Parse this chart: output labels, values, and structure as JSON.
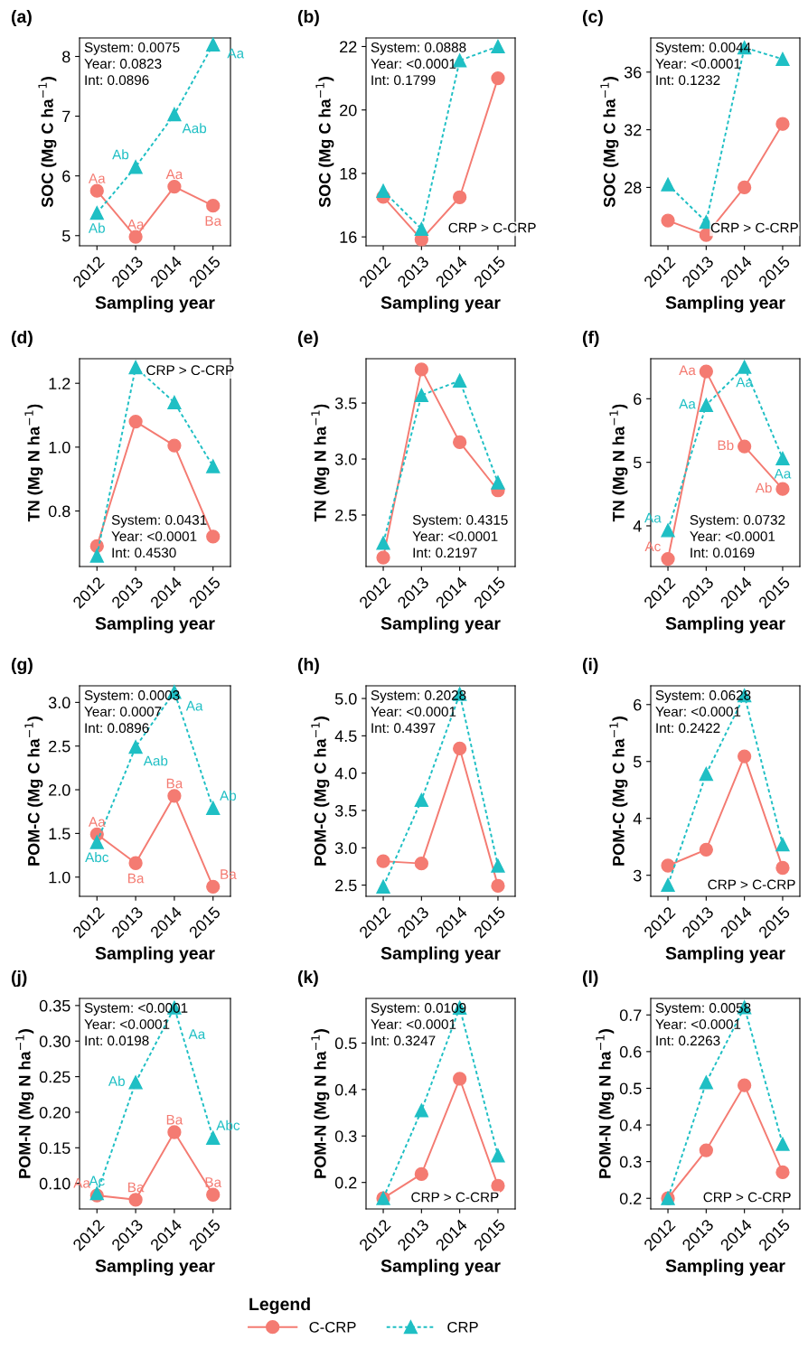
{
  "chart_data": [
    {
      "type": "line",
      "title": "(a)",
      "xlabel": "Sampling year",
      "ylabel": "SOC (Mg C ha$^{−1}$)",
      "categories": [
        "2012",
        "2013",
        "2014",
        "2015"
      ],
      "ylim": [
        4.83,
        8.31
      ],
      "yticks": [
        5,
        6,
        7,
        8
      ],
      "grid": false,
      "legend": false,
      "series": [
        {
          "color": "#f47b72",
          "marker": "circle",
          "line_style": "solid",
          "values": [
            5.75,
            4.98,
            5.82,
            5.5
          ],
          "value_labels": [
            "Aa",
            "Aa",
            "Aa",
            "Ba"
          ]
        },
        {
          "color": "#1fbfc4",
          "marker": "triangle",
          "line_style": "dotted",
          "values": [
            5.38,
            6.15,
            7.03,
            8.2
          ],
          "value_labels": [
            "Ab",
            "Ab",
            "Aab",
            "Aa"
          ]
        }
      ],
      "annotations": [
        "System: 0.0075\nYear: 0.0823\nInt: 0.0896"
      ]
    },
    {
      "type": "line",
      "title": "(b)",
      "xlabel": "Sampling year",
      "ylabel": "SOC (Mg C ha$^{−1}$)",
      "categories": [
        "2012",
        "2013",
        "2014",
        "2015"
      ],
      "ylim": [
        15.72,
        22.27
      ],
      "yticks": [
        16,
        18,
        20,
        22
      ],
      "grid": false,
      "legend": false,
      "series": [
        {
          "color": "#f47b72",
          "marker": "circle",
          "line_style": "solid",
          "values": [
            17.26,
            15.92,
            17.25,
            21.0
          ]
        },
        {
          "color": "#1fbfc4",
          "marker": "triangle",
          "line_style": "dotted",
          "values": [
            17.45,
            16.25,
            21.56,
            22.0
          ]
        }
      ],
      "annotations": [
        "System: 0.0888\nYear: <0.0001\nInt: 0.1799",
        "CRP > C-CRP"
      ]
    },
    {
      "type": "line",
      "title": "(c)",
      "xlabel": "Sampling year",
      "ylabel": "SOC (Mg C ha$^{−1}$)",
      "categories": [
        "2012",
        "2013",
        "2014",
        "2015"
      ],
      "ylim": [
        23.95,
        38.37
      ],
      "yticks": [
        28,
        32,
        36
      ],
      "grid": false,
      "legend": false,
      "series": [
        {
          "color": "#f47b72",
          "marker": "circle",
          "line_style": "solid",
          "values": [
            25.7,
            24.7,
            28.0,
            32.4
          ]
        },
        {
          "color": "#1fbfc4",
          "marker": "triangle",
          "line_style": "dotted",
          "values": [
            28.2,
            25.6,
            37.7,
            36.9
          ]
        }
      ],
      "annotations": [
        "System: 0.0044\nYear: <0.0001\nInt: 0.1232",
        "CRP > C-CRP"
      ]
    },
    {
      "type": "line",
      "title": "(d)",
      "xlabel": "Sampling year",
      "ylabel": "TN (Mg N ha$^{−1}$)",
      "categories": [
        "2012",
        "2013",
        "2014",
        "2015"
      ],
      "ylim": [
        0.626,
        1.277
      ],
      "yticks": [
        0.8,
        {
          "value": 1,
          "label": "1.0"
        },
        1.2
      ],
      "grid": false,
      "legend": false,
      "series": [
        {
          "color": "#f47b72",
          "marker": "circle",
          "line_style": "solid",
          "values": [
            0.69,
            1.08,
            1.005,
            0.72
          ]
        },
        {
          "color": "#1fbfc4",
          "marker": "triangle",
          "line_style": "dotted",
          "values": [
            0.66,
            1.25,
            1.14,
            0.94
          ]
        }
      ],
      "annotations": [
        "System: 0.0431\nYear: <0.0001\nInt: 0.4530",
        "CRP > C-CRP"
      ]
    },
    {
      "type": "line",
      "title": "(e)",
      "xlabel": "Sampling year",
      "ylabel": "TN (Mg N ha$^{−1}$)",
      "categories": [
        "2012",
        "2013",
        "2014",
        "2015"
      ],
      "ylim": [
        2.04,
        3.896
      ],
      "yticks": [
        2.5,
        {
          "value": 3,
          "label": "3.0"
        },
        3.5
      ],
      "grid": false,
      "legend": false,
      "series": [
        {
          "color": "#f47b72",
          "marker": "circle",
          "line_style": "solid",
          "values": [
            2.12,
            3.8,
            3.15,
            2.72
          ]
        },
        {
          "color": "#1fbfc4",
          "marker": "triangle",
          "line_style": "dotted",
          "values": [
            2.25,
            3.57,
            3.7,
            2.79
          ]
        }
      ],
      "annotations": [
        "System: 0.4315\nYear: <0.0001\nInt: 0.2197"
      ]
    },
    {
      "type": "line",
      "title": "(f)",
      "xlabel": "Sampling year",
      "ylabel": "TN (Mg N ha$^{−1}$)",
      "categories": [
        "2012",
        "2013",
        "2014",
        "2015"
      ],
      "ylim": [
        3.36,
        6.63
      ],
      "yticks": [
        4,
        5,
        6
      ],
      "grid": false,
      "legend": false,
      "series": [
        {
          "color": "#f47b72",
          "marker": "circle",
          "line_style": "solid",
          "values": [
            3.48,
            6.43,
            5.25,
            4.58
          ],
          "value_labels": [
            "Ac",
            "Aa",
            "Bb",
            "Ab"
          ]
        },
        {
          "color": "#1fbfc4",
          "marker": "triangle",
          "line_style": "dotted",
          "values": [
            3.93,
            5.9,
            6.5,
            5.06
          ],
          "value_labels": [
            "Aa",
            "Aa",
            "Aa",
            "Aa"
          ]
        }
      ],
      "annotations": [
        "System: 0.0732\nYear: <0.0001\nInt: 0.0169"
      ]
    },
    {
      "type": "line",
      "title": "(g)",
      "xlabel": "Sampling year",
      "ylabel": "POM-C (Mg C ha$^{−1}$)",
      "categories": [
        "2012",
        "2013",
        "2014",
        "2015"
      ],
      "ylim": [
        0.78,
        3.19
      ],
      "yticks": [
        {
          "value": 1,
          "label": "1.0"
        },
        1.5,
        {
          "value": 2,
          "label": "2.0"
        },
        2.5,
        {
          "value": 3,
          "label": "3.0"
        }
      ],
      "grid": false,
      "legend": false,
      "series": [
        {
          "color": "#f47b72",
          "marker": "circle",
          "line_style": "solid",
          "values": [
            1.49,
            1.16,
            1.93,
            0.89
          ],
          "value_labels": [
            "Aa",
            "Ba",
            "Ba",
            "Ba"
          ]
        },
        {
          "color": "#1fbfc4",
          "marker": "triangle",
          "line_style": "dotted",
          "values": [
            1.4,
            2.49,
            3.12,
            1.79
          ],
          "value_labels": [
            "Abc",
            "Aab",
            "Aa",
            "Ab"
          ]
        }
      ],
      "annotations": [
        "System: 0.0003\nYear: 0.0007\nInt: 0.0896"
      ]
    },
    {
      "type": "line",
      "title": "(h)",
      "xlabel": "Sampling year",
      "ylabel": "POM-C (Mg C ha$^{−1}$)",
      "categories": [
        "2012",
        "2013",
        "2014",
        "2015"
      ],
      "ylim": [
        2.35,
        5.17
      ],
      "yticks": [
        2.5,
        {
          "value": 3,
          "label": "3.0"
        },
        3.5,
        {
          "value": 4,
          "label": "4.0"
        },
        4.5,
        {
          "value": 5,
          "label": "5.0"
        }
      ],
      "grid": false,
      "legend": false,
      "series": [
        {
          "color": "#f47b72",
          "marker": "circle",
          "line_style": "solid",
          "values": [
            2.82,
            2.79,
            4.33,
            2.49
          ]
        },
        {
          "color": "#1fbfc4",
          "marker": "triangle",
          "line_style": "dotted",
          "values": [
            2.48,
            3.64,
            5.06,
            2.76
          ]
        }
      ],
      "annotations": [
        "System: 0.2028\nYear: <0.0001\nInt: 0.4397"
      ]
    },
    {
      "type": "line",
      "title": "(i)",
      "xlabel": "Sampling year",
      "ylabel": "POM-C (Mg C ha$^{−1}$)",
      "categories": [
        "2012",
        "2013",
        "2014",
        "2015"
      ],
      "ylim": [
        2.63,
        6.33
      ],
      "yticks": [
        3,
        4,
        5,
        6
      ],
      "grid": false,
      "legend": false,
      "series": [
        {
          "color": "#f47b72",
          "marker": "circle",
          "line_style": "solid",
          "values": [
            3.17,
            3.45,
            5.09,
            3.13
          ]
        },
        {
          "color": "#1fbfc4",
          "marker": "triangle",
          "line_style": "dotted",
          "values": [
            2.83,
            4.78,
            6.16,
            3.54
          ]
        }
      ],
      "annotations": [
        "System: 0.0628\nYear: <0.0001\nInt: 0.2422",
        "CRP > C-CRP"
      ]
    },
    {
      "type": "line",
      "title": "(j)",
      "xlabel": "Sampling year",
      "ylabel": "POM-N (Mg N ha$^{−1}$)",
      "categories": [
        "2012",
        "2013",
        "2014",
        "2015"
      ],
      "ylim": [
        0.064,
        0.36
      ],
      "yticks": [
        {
          "value": 0.1,
          "label": "0.10"
        },
        0.15,
        {
          "value": 0.2,
          "label": "0.20"
        },
        0.25,
        {
          "value": 0.3,
          "label": "0.30"
        },
        0.35
      ],
      "grid": false,
      "legend": false,
      "series": [
        {
          "color": "#f47b72",
          "marker": "circle",
          "line_style": "solid",
          "values": [
            0.083,
            0.077,
            0.172,
            0.084
          ],
          "value_labels": [
            "Aa",
            "Ba",
            "Ba",
            "Ba"
          ]
        },
        {
          "color": "#1fbfc4",
          "marker": "triangle",
          "line_style": "dotted",
          "values": [
            0.086,
            0.242,
            0.347,
            0.164
          ],
          "value_labels": [
            "Ac",
            "Ab",
            "Aa",
            "Abc"
          ]
        }
      ],
      "annotations": [
        "System: <0.0001\nYear: <0.0001\nInt: 0.0198"
      ]
    },
    {
      "type": "line",
      "title": "(k)",
      "xlabel": "Sampling year",
      "ylabel": "POM-N (Mg N ha$^{−1}$)",
      "categories": [
        "2012",
        "2013",
        "2014",
        "2015"
      ],
      "ylim": [
        0.143,
        0.596
      ],
      "yticks": [
        0.2,
        0.3,
        0.4,
        0.5
      ],
      "grid": false,
      "legend": "bottom",
      "legend_title": "Legend",
      "series": [
        {
          "name": "C-CRP",
          "color": "#f47b72",
          "marker": "circle",
          "line_style": "solid",
          "values": [
            0.166,
            0.218,
            0.423,
            0.193
          ]
        },
        {
          "name": "CRP",
          "color": "#1fbfc4",
          "marker": "triangle",
          "line_style": "dotted",
          "values": [
            0.166,
            0.355,
            0.576,
            0.258
          ]
        }
      ],
      "annotations": [
        "System: 0.0109\nYear: <0.0001\nInt: 0.3247",
        "CRP > C-CRP"
      ]
    },
    {
      "type": "line",
      "title": "(l)",
      "xlabel": "Sampling year",
      "ylabel": "POM-N (Mg N ha$^{−1}$)",
      "categories": [
        "2012",
        "2013",
        "2014",
        "2015"
      ],
      "ylim": [
        0.171,
        0.745
      ],
      "yticks": [
        0.2,
        0.3,
        0.4,
        0.5,
        0.6,
        0.7
      ],
      "grid": false,
      "legend": false,
      "series": [
        {
          "color": "#f47b72",
          "marker": "circle",
          "line_style": "solid",
          "values": [
            0.2,
            0.331,
            0.508,
            0.271
          ]
        },
        {
          "color": "#1fbfc4",
          "marker": "triangle",
          "line_style": "dotted",
          "values": [
            0.2,
            0.516,
            0.721,
            0.348
          ]
        }
      ],
      "annotations": [
        "System: 0.0058\nYear: <0.0001\nInt: 0.2263",
        "CRP > C-CRP"
      ]
    }
  ]
}
